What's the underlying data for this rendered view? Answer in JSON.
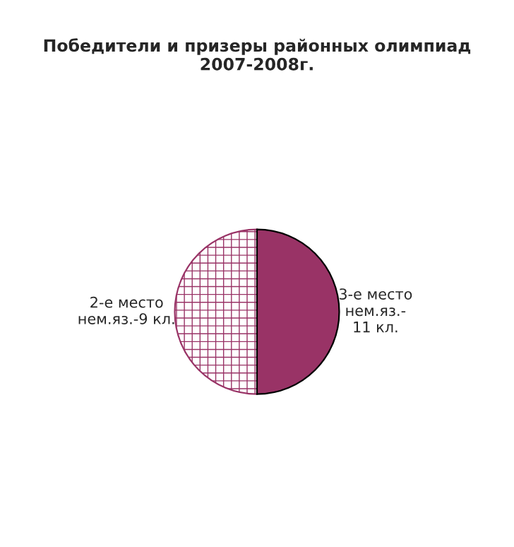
{
  "chart_data": {
    "type": "pie",
    "title": "Победители и призеры районных олимпиад\n2007-2008г.",
    "categories": [
      "2-е место\nнем.яз.-9 кл.",
      "3-е место\nнем.яз.-\n11 кл."
    ],
    "values": [
      50,
      50
    ],
    "colors": [
      "#993366",
      "#993366"
    ]
  }
}
